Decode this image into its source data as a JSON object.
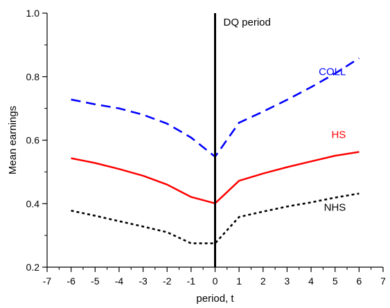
{
  "chart_data": {
    "type": "line",
    "title": "",
    "xlabel": "period, t",
    "ylabel": "Mean earnings",
    "xlim": [
      -7,
      7
    ],
    "ylim": [
      0.2,
      1.0
    ],
    "x_ticks": [
      -7,
      -6,
      -5,
      -4,
      -3,
      -2,
      -1,
      0,
      1,
      2,
      3,
      4,
      5,
      6,
      7
    ],
    "y_ticks": [
      0.2,
      0.4,
      0.6,
      0.8,
      1.0
    ],
    "y_tick_labels": [
      "0.2",
      "0.4",
      "0.6",
      "0.8",
      "1.0"
    ],
    "grid": false,
    "vertical_line": {
      "x": 0,
      "label": "DQ period"
    },
    "series": [
      {
        "name": "COLL",
        "color": "#0000ff",
        "style": "dashed",
        "x": [
          -6,
          -5,
          -4,
          -3,
          -2,
          -1,
          0,
          1,
          2,
          3,
          4,
          5,
          6
        ],
        "values": [
          0.728,
          0.713,
          0.7,
          0.68,
          0.652,
          0.608,
          0.548,
          0.655,
          0.69,
          0.727,
          0.767,
          0.81,
          0.858
        ]
      },
      {
        "name": "HS",
        "color": "#ff0000",
        "style": "solid",
        "x": [
          -6,
          -5,
          -4,
          -3,
          -2,
          -1,
          0,
          1,
          2,
          3,
          4,
          5,
          6
        ],
        "values": [
          0.543,
          0.528,
          0.509,
          0.488,
          0.46,
          0.421,
          0.401,
          0.472,
          0.495,
          0.515,
          0.533,
          0.551,
          0.563
        ]
      },
      {
        "name": "NHS",
        "color": "#000000",
        "style": "dotted",
        "x": [
          -6,
          -5,
          -4,
          -3,
          -2,
          -1,
          0,
          1,
          2,
          3,
          4,
          5,
          6
        ],
        "values": [
          0.378,
          0.362,
          0.345,
          0.328,
          0.31,
          0.275,
          0.275,
          0.358,
          0.375,
          0.391,
          0.404,
          0.419,
          0.432
        ]
      }
    ]
  }
}
